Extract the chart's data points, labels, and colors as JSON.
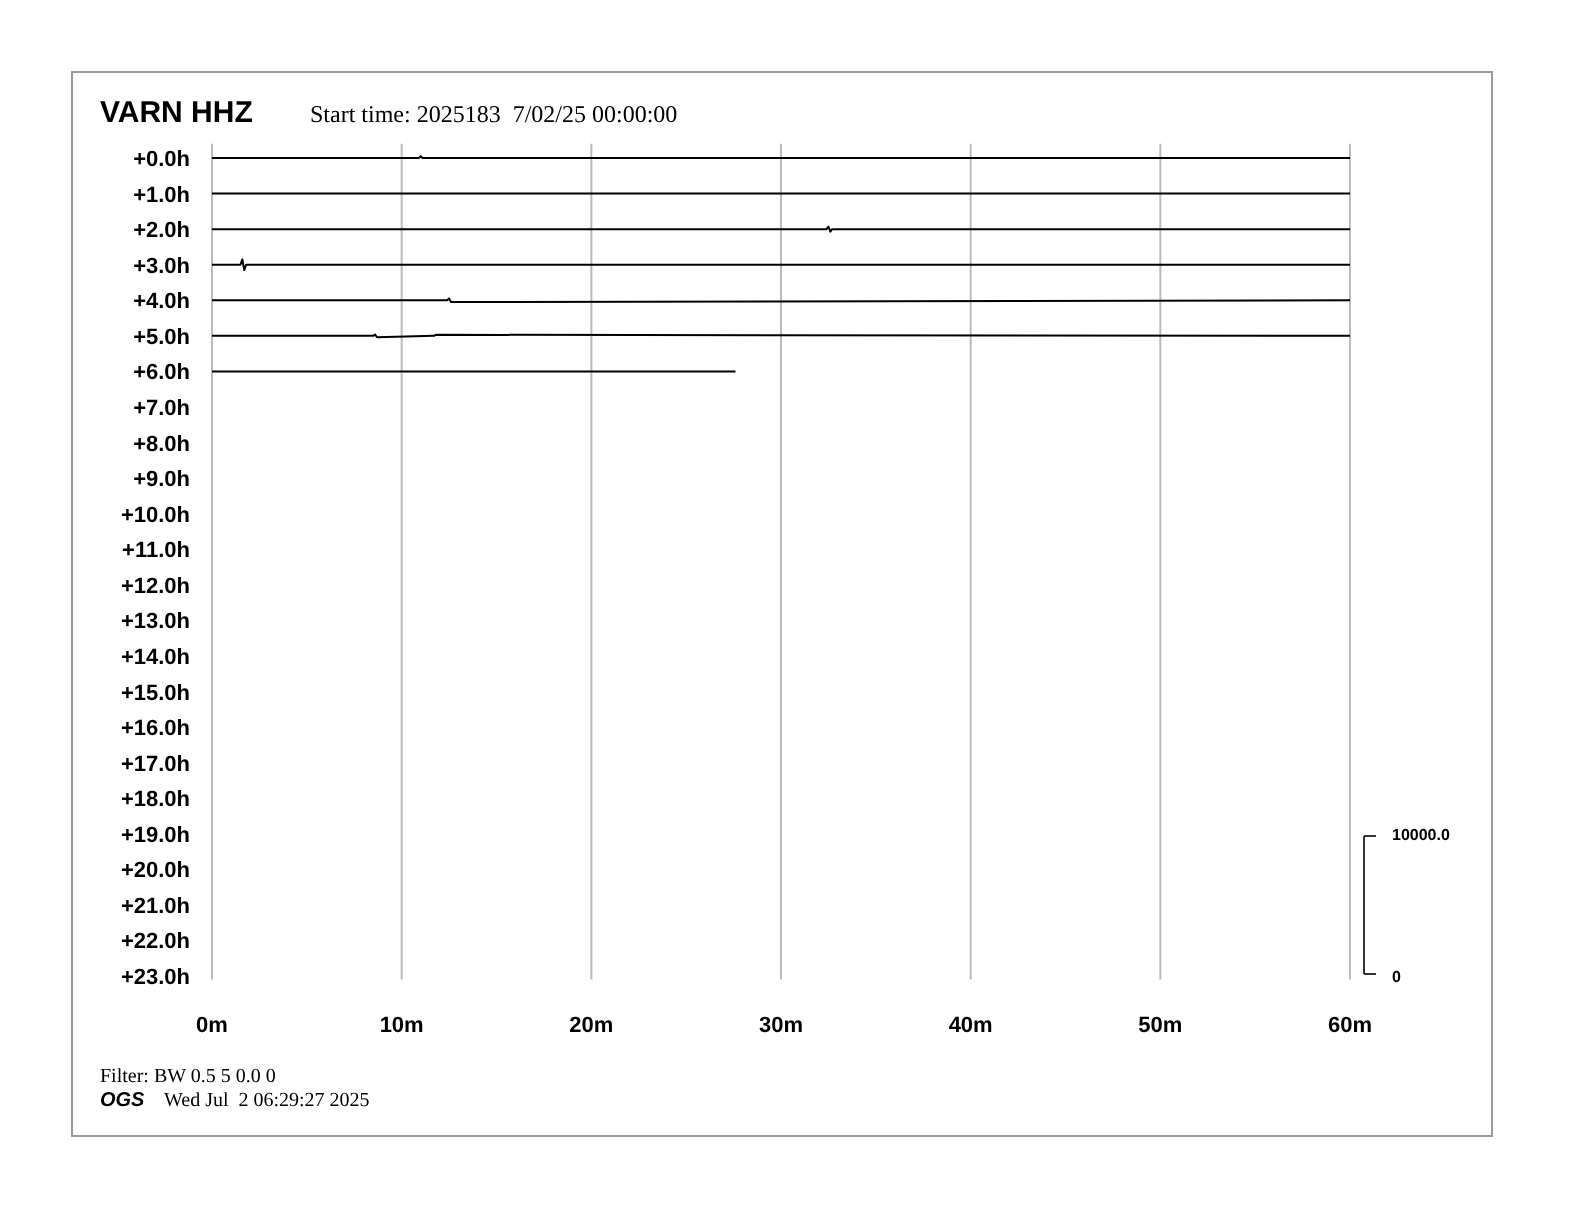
{
  "chart_data": {
    "type": "line",
    "title": "VARN HHZ",
    "subtitle": "Start time: 2025183  7/02/25 00:00:00",
    "xlim": [
      0,
      60
    ],
    "xticks": [
      {
        "value": 0,
        "label": "0m"
      },
      {
        "value": 10,
        "label": "10m"
      },
      {
        "value": 20,
        "label": "20m"
      },
      {
        "value": 30,
        "label": "30m"
      },
      {
        "value": 40,
        "label": "40m"
      },
      {
        "value": 50,
        "label": "50m"
      },
      {
        "value": 60,
        "label": "60m"
      }
    ],
    "ylim": [
      23.1,
      -0.4
    ],
    "yticks": [
      {
        "value": 0,
        "label": "+0.0h"
      },
      {
        "value": 1,
        "label": "+1.0h"
      },
      {
        "value": 2,
        "label": "+2.0h"
      },
      {
        "value": 3,
        "label": "+3.0h"
      },
      {
        "value": 4,
        "label": "+4.0h"
      },
      {
        "value": 5,
        "label": "+5.0h"
      },
      {
        "value": 6,
        "label": "+6.0h"
      },
      {
        "value": 7,
        "label": "+7.0h"
      },
      {
        "value": 8,
        "label": "+8.0h"
      },
      {
        "value": 9,
        "label": "+9.0h"
      },
      {
        "value": 10,
        "label": "+10.0h"
      },
      {
        "value": 11,
        "label": "+11.0h"
      },
      {
        "value": 12,
        "label": "+12.0h"
      },
      {
        "value": 13,
        "label": "+13.0h"
      },
      {
        "value": 14,
        "label": "+14.0h"
      },
      {
        "value": 15,
        "label": "+15.0h"
      },
      {
        "value": 16,
        "label": "+16.0h"
      },
      {
        "value": 17,
        "label": "+17.0h"
      },
      {
        "value": 18,
        "label": "+18.0h"
      },
      {
        "value": 19,
        "label": "+19.0h"
      },
      {
        "value": 20,
        "label": "+20.0h"
      },
      {
        "value": 21,
        "label": "+21.0h"
      },
      {
        "value": 22,
        "label": "+22.0h"
      },
      {
        "value": 23,
        "label": "+23.0h"
      }
    ],
    "grid": "x",
    "marker": "none",
    "line_style": "solid",
    "series": [
      {
        "color": "#000000",
        "x": [
          0,
          10.9,
          11.0,
          11.1,
          60
        ],
        "values": [
          0,
          0,
          -0.05,
          0,
          0
        ]
      },
      {
        "color": "#000000",
        "x": [
          0,
          60
        ],
        "values": [
          1,
          1
        ]
      },
      {
        "color": "#000000",
        "x": [
          0,
          32.4,
          32.5,
          32.6,
          32.7,
          47,
          60
        ],
        "values": [
          2,
          2,
          1.93,
          2.07,
          2,
          2,
          2
        ]
      },
      {
        "color": "#000000",
        "x": [
          0,
          1.5,
          1.6,
          1.7,
          1.8,
          27.8,
          58,
          60
        ],
        "values": [
          3,
          3,
          2.85,
          3.15,
          3,
          3,
          3,
          3
        ]
      },
      {
        "color": "#000000",
        "x": [
          0,
          12.4,
          12.5,
          12.6,
          60
        ],
        "values": [
          4,
          4,
          3.95,
          4.05,
          4
        ]
      },
      {
        "color": "#000000",
        "x": [
          0,
          8.5,
          8.6,
          8.7,
          11.7,
          11.8,
          60
        ],
        "values": [
          5,
          5,
          4.96,
          5.04,
          5,
          4.97,
          5
        ]
      },
      {
        "color": "#000000",
        "x": [
          0,
          27.6
        ],
        "values": [
          6,
          6
        ]
      }
    ],
    "annotations": [
      "Filter: BW 0.5 5 0.0 0",
      "OGS",
      "Wed Jul  2 06:29:27 2025",
      "10000.0",
      "0"
    ]
  }
}
